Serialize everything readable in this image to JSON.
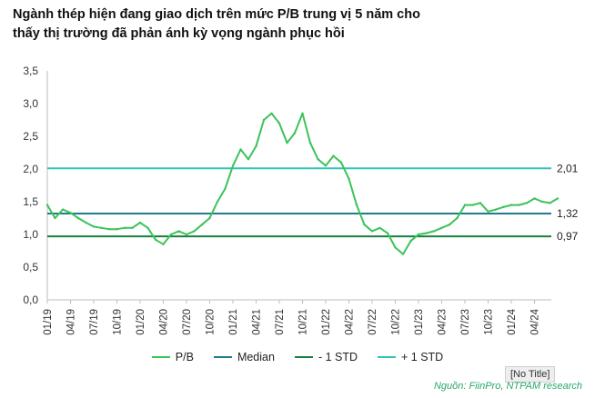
{
  "title": {
    "line1": "Ngành thép hiện đang giao dịch trên mức P/B trung vị 5 năm cho",
    "line2": "thấy thị trường đã phản ánh kỳ vọng ngành phục hồi"
  },
  "chart_data": {
    "type": "line",
    "title": "Ngành thép hiện đang giao dịch trên mức P/B trung vị 5 năm cho thấy thị trường đã phản ánh kỳ vọng ngành phục hồi",
    "xlabel": "",
    "ylabel": "",
    "ylim": [
      0,
      3.5
    ],
    "y_ticks": [
      "0,0",
      "0,5",
      "1,0",
      "1,5",
      "2,0",
      "2,5",
      "3,0",
      "3,5"
    ],
    "x_ticks": [
      "01/19",
      "04/19",
      "07/19",
      "10/19",
      "01/20",
      "04/20",
      "07/20",
      "10/20",
      "01/21",
      "04/21",
      "07/21",
      "10/21",
      "01/22",
      "04/22",
      "07/22",
      "10/22",
      "01/23",
      "04/23",
      "07/23",
      "10/23",
      "01/24",
      "04/24"
    ],
    "grid": false,
    "legend_position": "bottom",
    "x": [
      "01/19",
      "02/19",
      "03/19",
      "04/19",
      "05/19",
      "06/19",
      "07/19",
      "08/19",
      "09/19",
      "10/19",
      "11/19",
      "12/19",
      "01/20",
      "02/20",
      "03/20",
      "04/20",
      "05/20",
      "06/20",
      "07/20",
      "08/20",
      "09/20",
      "10/20",
      "11/20",
      "12/20",
      "01/21",
      "02/21",
      "03/21",
      "04/21",
      "05/21",
      "06/21",
      "07/21",
      "08/21",
      "09/21",
      "10/21",
      "11/21",
      "12/21",
      "01/22",
      "02/22",
      "03/22",
      "04/22",
      "05/22",
      "06/22",
      "07/22",
      "08/22",
      "09/22",
      "10/22",
      "11/22",
      "12/22",
      "01/23",
      "02/23",
      "03/23",
      "04/23",
      "05/23",
      "06/23",
      "07/23",
      "08/23",
      "09/23",
      "10/23",
      "11/23",
      "12/23",
      "01/24",
      "02/24",
      "03/24",
      "04/24",
      "05/24",
      "06/24",
      "07/24"
    ],
    "series": [
      {
        "name": "P/B",
        "color": "#3cc35a",
        "values": [
          1.45,
          1.25,
          1.38,
          1.33,
          1.25,
          1.18,
          1.12,
          1.1,
          1.08,
          1.08,
          1.1,
          1.1,
          1.18,
          1.1,
          0.92,
          0.85,
          1.0,
          1.05,
          1.0,
          1.05,
          1.15,
          1.25,
          1.5,
          1.7,
          2.05,
          2.3,
          2.15,
          2.35,
          2.75,
          2.85,
          2.7,
          2.4,
          2.55,
          2.85,
          2.4,
          2.15,
          2.05,
          2.2,
          2.1,
          1.85,
          1.45,
          1.15,
          1.05,
          1.1,
          1.02,
          0.8,
          0.7,
          0.9,
          1.0,
          1.02,
          1.05,
          1.1,
          1.15,
          1.25,
          1.45,
          1.45,
          1.48,
          1.35,
          1.38,
          1.42,
          1.45,
          1.45,
          1.48,
          1.55,
          1.5,
          1.48,
          1.55
        ]
      }
    ],
    "reference_lines": [
      {
        "name": "Median",
        "value": 1.32,
        "label": "1,32",
        "color": "#1f7a8c"
      },
      {
        "name": "- 1 STD",
        "value": 0.97,
        "label": "0,97",
        "color": "#15803d"
      },
      {
        "name": "+ 1 STD",
        "value": 2.01,
        "label": "2,01",
        "color": "#2ec4b6"
      }
    ]
  },
  "legend": {
    "items": [
      {
        "label": "P/B",
        "color": "#3cc35a"
      },
      {
        "label": "Median",
        "color": "#1f7a8c"
      },
      {
        "label": "- 1 STD",
        "color": "#15803d"
      },
      {
        "label": "+ 1 STD",
        "color": "#2ec4b6"
      }
    ]
  },
  "tooltip": "[No Title]",
  "source": "Nguồn: FiinPro, NTPAM research"
}
